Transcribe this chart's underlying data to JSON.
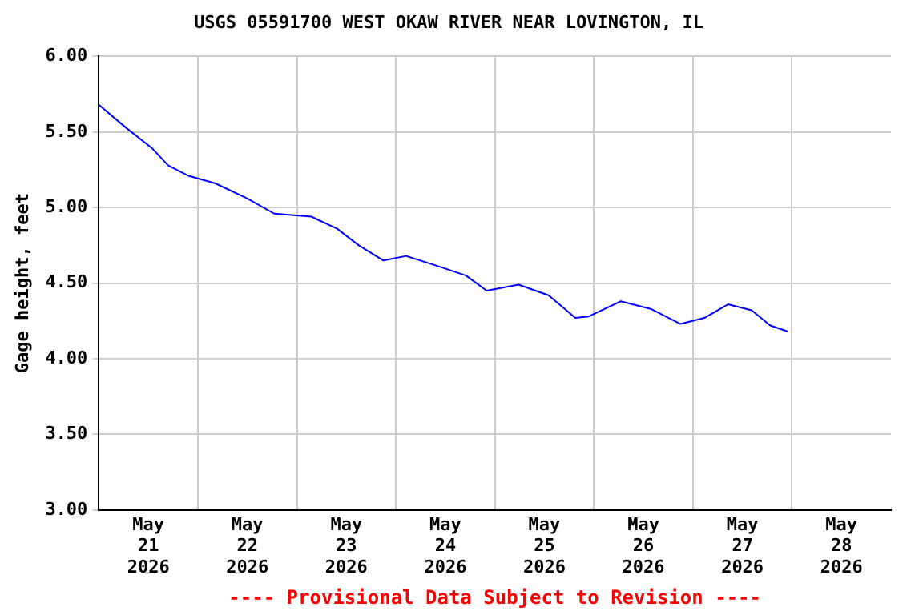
{
  "chart_data": {
    "type": "line",
    "title": "USGS 05591700 WEST OKAW RIVER NEAR LOVINGTON, IL",
    "ylabel": "Gage height, feet",
    "annotations": [
      "---- Provisional Data Subject to Revision ----"
    ],
    "x": [
      "2026-05-21T00:00",
      "2026-05-21T06:30",
      "2026-05-21T13:00",
      "2026-05-21T16:45",
      "2026-05-21T21:45",
      "2026-05-22T04:15",
      "2026-05-22T12:00",
      "2026-05-22T18:30",
      "2026-05-23T03:30",
      "2026-05-23T09:45",
      "2026-05-23T15:00",
      "2026-05-23T21:00",
      "2026-05-24T02:30",
      "2026-05-24T10:30",
      "2026-05-24T17:00",
      "2026-05-24T22:00",
      "2026-05-25T05:45",
      "2026-05-25T13:00",
      "2026-05-25T19:30",
      "2026-05-25T22:45",
      "2026-05-26T06:30",
      "2026-05-26T13:45",
      "2026-05-26T21:00",
      "2026-05-27T02:45",
      "2026-05-27T08:30",
      "2026-05-27T14:15",
      "2026-05-27T18:45",
      "2026-05-27T23:00"
    ],
    "series": [
      {
        "color": "#0000ff",
        "values": [
          5.68,
          5.53,
          5.39,
          5.28,
          5.21,
          5.16,
          5.06,
          4.96,
          4.94,
          4.86,
          4.75,
          4.65,
          4.68,
          4.61,
          4.55,
          4.45,
          4.49,
          4.42,
          4.27,
          4.28,
          4.38,
          4.33,
          4.23,
          4.27,
          4.36,
          4.32,
          4.22,
          4.18
        ]
      }
    ],
    "xlim": [
      "2026-05-21T00:00",
      "2026-05-29T00:00"
    ],
    "xticks": [
      {
        "value": "2026-05-21T12:00",
        "label": "May\n21\n2026"
      },
      {
        "value": "2026-05-22T00:00",
        "label": null
      },
      {
        "value": "2026-05-22T12:00",
        "label": "May\n22\n2026"
      },
      {
        "value": "2026-05-23T00:00",
        "label": null
      },
      {
        "value": "2026-05-23T12:00",
        "label": "May\n23\n2026"
      },
      {
        "value": "2026-05-24T00:00",
        "label": null
      },
      {
        "value": "2026-05-24T12:00",
        "label": "May\n24\n2026"
      },
      {
        "value": "2026-05-25T00:00",
        "label": null
      },
      {
        "value": "2026-05-25T12:00",
        "label": "May\n25\n2026"
      },
      {
        "value": "2026-05-26T00:00",
        "label": null
      },
      {
        "value": "2026-05-26T12:00",
        "label": "May\n26\n2026"
      },
      {
        "value": "2026-05-27T00:00",
        "label": null
      },
      {
        "value": "2026-05-27T12:00",
        "label": "May\n27\n2026"
      },
      {
        "value": "2026-05-28T00:00",
        "label": null
      },
      {
        "value": "2026-05-28T12:00",
        "label": "May\n28\n2026"
      }
    ],
    "ylim": [
      3,
      6
    ],
    "yticks": [
      {
        "value": 3,
        "label": "3.00"
      },
      {
        "value": 3.5,
        "label": "3.50"
      },
      {
        "value": 4,
        "label": "4.00"
      },
      {
        "value": 4.5,
        "label": "4.50"
      },
      {
        "value": 5,
        "label": "5.00"
      },
      {
        "value": 5.5,
        "label": "5.50"
      },
      {
        "value": 6,
        "label": "6.00"
      }
    ],
    "grid": true,
    "legend": false,
    "marker": "none",
    "line_style": "solid"
  }
}
